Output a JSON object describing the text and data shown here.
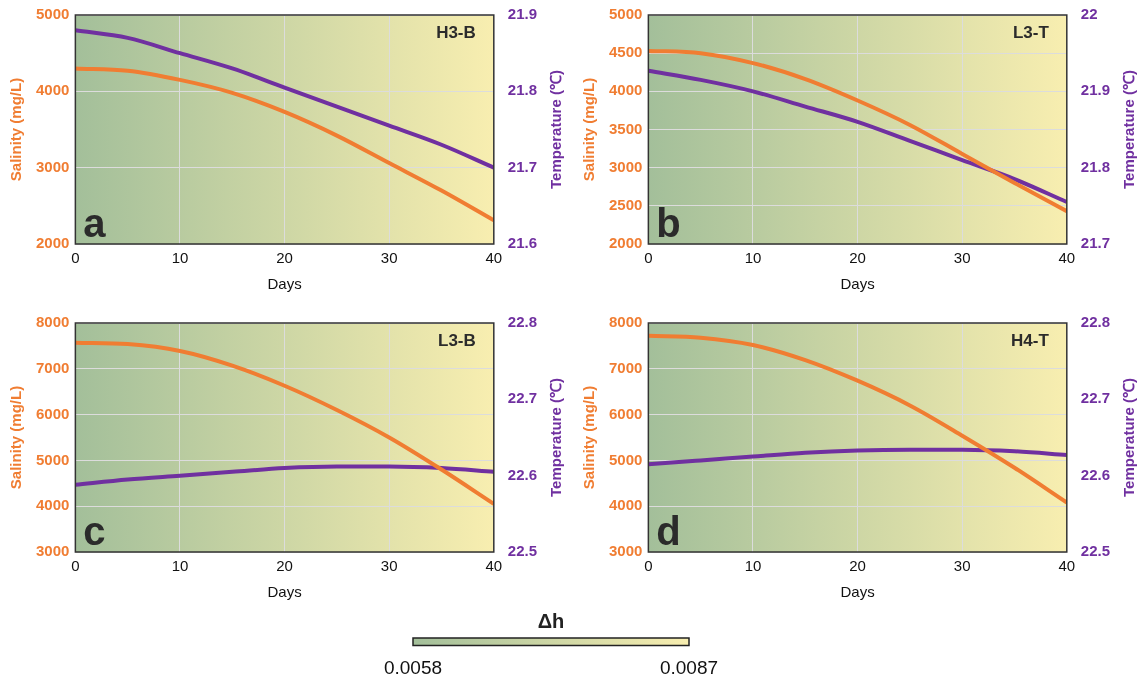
{
  "chart_data": [
    {
      "type": "line",
      "xlabel": "Days",
      "ylabel": "Salinity (mg/L)",
      "y2label": "Temperature (℃)",
      "annotations": [
        "a",
        "H3-B"
      ],
      "x": [
        0,
        5,
        10,
        15,
        20,
        25,
        30,
        35,
        40
      ],
      "xlim": [
        0,
        40
      ],
      "xticks": [
        0,
        10,
        20,
        30,
        40
      ],
      "ylim": [
        2000,
        5000
      ],
      "yticks": [
        2000,
        3000,
        4000,
        5000
      ],
      "y2lim": [
        21.6,
        21.9
      ],
      "y2ticks": [
        21.6,
        21.7,
        21.8,
        21.9
      ],
      "grid": true,
      "series": [
        {
          "color": "#f07d32",
          "values": [
            4300,
            4270,
            4150,
            3980,
            3730,
            3420,
            3060,
            2700,
            2310
          ]
        },
        {
          "color": "#7030a0",
          "axis": "y2",
          "values": [
            21.88,
            21.87,
            21.85,
            21.83,
            21.805,
            21.78,
            21.755,
            21.73,
            21.7
          ]
        }
      ]
    },
    {
      "type": "line",
      "xlabel": "Days",
      "ylabel": "Salinity (mg/L)",
      "y2label": "Temperature (℃)",
      "annotations": [
        "b",
        "L3-T"
      ],
      "x": [
        0,
        5,
        10,
        15,
        20,
        25,
        30,
        35,
        40
      ],
      "xlim": [
        0,
        40
      ],
      "xticks": [
        0,
        10,
        20,
        30,
        40
      ],
      "ylim": [
        2000,
        5000
      ],
      "yticks": [
        2000,
        2500,
        3000,
        3500,
        4000,
        4500,
        5000
      ],
      "y2lim": [
        21.7,
        22
      ],
      "y2ticks": [
        21.7,
        21.8,
        21.9,
        22
      ],
      "grid": true,
      "series": [
        {
          "color": "#f07d32",
          "values": [
            4530,
            4500,
            4370,
            4160,
            3880,
            3560,
            3180,
            2800,
            2430
          ]
        },
        {
          "color": "#7030a0",
          "axis": "y2",
          "values": [
            21.927,
            21.915,
            21.9,
            21.88,
            21.86,
            21.835,
            21.81,
            21.785,
            21.755
          ]
        }
      ]
    },
    {
      "type": "line",
      "xlabel": "Days",
      "ylabel": "Salinity (mg/L)",
      "y2label": "Temperature (℃)",
      "annotations": [
        "c",
        "L3-B"
      ],
      "x": [
        0,
        5,
        10,
        15,
        20,
        25,
        30,
        35,
        40
      ],
      "xlim": [
        0,
        40
      ],
      "xticks": [
        0,
        10,
        20,
        30,
        40
      ],
      "ylim": [
        3000,
        8000
      ],
      "yticks": [
        3000,
        4000,
        5000,
        6000,
        7000,
        8000
      ],
      "y2lim": [
        22.5,
        22.8
      ],
      "y2ticks": [
        22.5,
        22.6,
        22.7,
        22.8
      ],
      "grid": true,
      "series": [
        {
          "color": "#f07d32",
          "values": [
            7570,
            7540,
            7390,
            7070,
            6630,
            6100,
            5500,
            4800,
            4050
          ]
        },
        {
          "color": "#7030a0",
          "axis": "y2",
          "values": [
            22.588,
            22.595,
            22.6,
            22.605,
            22.61,
            22.612,
            22.612,
            22.61,
            22.605
          ]
        }
      ]
    },
    {
      "type": "line",
      "xlabel": "Days",
      "ylabel": "Salinity (mg/L)",
      "y2label": "Temperature (℃)",
      "annotations": [
        "d",
        "H4-T"
      ],
      "x": [
        0,
        5,
        10,
        15,
        20,
        25,
        30,
        35,
        40
      ],
      "xlim": [
        0,
        40
      ],
      "xticks": [
        0,
        10,
        20,
        30,
        40
      ],
      "ylim": [
        3000,
        8000
      ],
      "yticks": [
        3000,
        4000,
        5000,
        6000,
        7000,
        8000
      ],
      "y2lim": [
        22.5,
        22.8
      ],
      "y2ticks": [
        22.5,
        22.6,
        22.7,
        22.8
      ],
      "grid": true,
      "clabel": "Δh",
      "clim": [
        0.0058,
        0.0087
      ],
      "cticks": [
        0.0058,
        0.0087
      ],
      "series": [
        {
          "color": "#f07d32",
          "values": [
            7720,
            7680,
            7520,
            7190,
            6740,
            6200,
            5540,
            4840,
            4080
          ]
        },
        {
          "color": "#7030a0",
          "axis": "y2",
          "values": [
            22.615,
            22.62,
            22.625,
            22.63,
            22.633,
            22.634,
            22.634,
            22.632,
            22.627
          ]
        }
      ]
    }
  ]
}
